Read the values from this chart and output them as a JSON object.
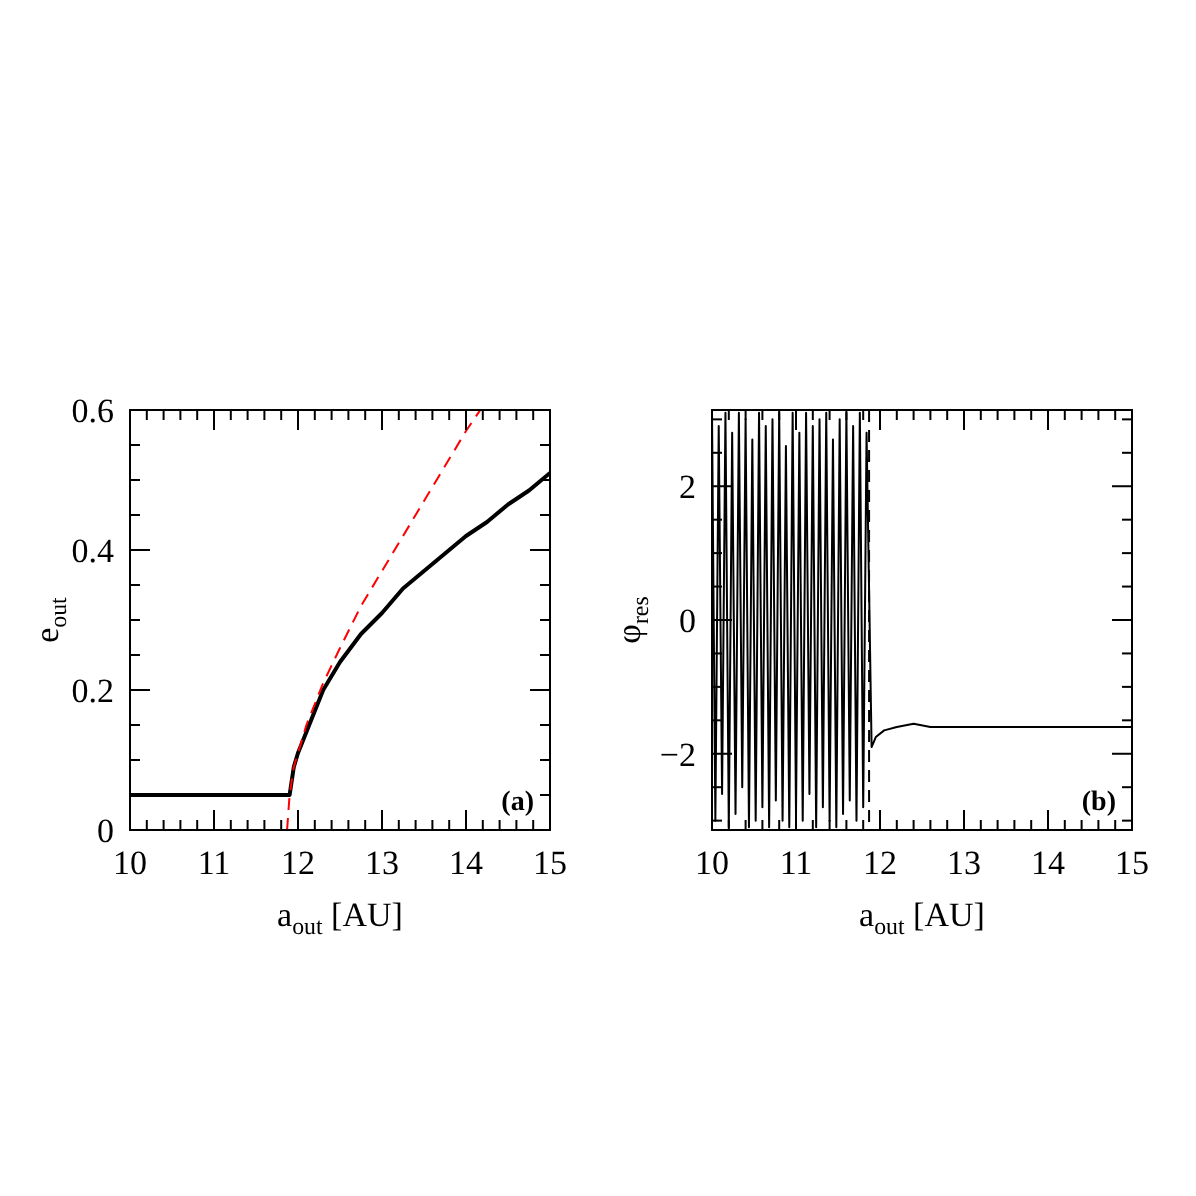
{
  "chart_data": [
    {
      "type": "line",
      "xlabel": "a$_{out}$[AU]",
      "ylabel": "e$_{out}$",
      "xlim": [
        10,
        15
      ],
      "ylim": [
        0,
        0.6
      ],
      "xticks": [
        10,
        {
          "value": 10.2,
          "label": null
        },
        {
          "value": 10.4,
          "label": null
        },
        {
          "value": 10.6,
          "label": null
        },
        {
          "value": 10.8,
          "label": null
        },
        11,
        {
          "value": 11.2,
          "label": null
        },
        {
          "value": 11.4,
          "label": null
        },
        {
          "value": 11.6,
          "label": null
        },
        {
          "value": 11.8,
          "label": null
        },
        12,
        {
          "value": 12.2,
          "label": null
        },
        {
          "value": 12.4,
          "label": null
        },
        {
          "value": 12.6,
          "label": null
        },
        {
          "value": 12.8,
          "label": null
        },
        13,
        {
          "value": 13.2,
          "label": null
        },
        {
          "value": 13.4,
          "label": null
        },
        {
          "value": 13.6,
          "label": null
        },
        {
          "value": 13.8,
          "label": null
        },
        14,
        {
          "value": 14.2,
          "label": null
        },
        {
          "value": 14.4,
          "label": null
        },
        {
          "value": 14.6,
          "label": null
        },
        {
          "value": 14.8,
          "label": null
        },
        15
      ],
      "yticks": [
        0,
        {
          "value": 0.05,
          "label": null
        },
        {
          "value": 0.1,
          "label": null
        },
        {
          "value": 0.15,
          "label": null
        },
        0.2,
        {
          "value": 0.25,
          "label": null
        },
        {
          "value": 0.3,
          "label": null
        },
        {
          "value": 0.35,
          "label": null
        },
        0.4,
        {
          "value": 0.45,
          "label": null
        },
        {
          "value": 0.5,
          "label": null
        },
        {
          "value": 0.55,
          "label": null
        },
        0.6
      ],
      "annotations": [
        "(a)"
      ],
      "series": [
        {
          "color": "#000000",
          "line_style": "solid",
          "x": [
            10,
            11,
            11.5,
            11.85,
            11.9,
            11.95,
            12,
            12.1,
            12.2,
            12.3,
            12.5,
            12.75,
            13,
            13.25,
            13.5,
            13.75,
            14,
            14.25,
            14.5,
            14.75,
            15
          ],
          "values": [
            0.05,
            0.05,
            0.05,
            0.05,
            0.05,
            0.09,
            0.11,
            0.14,
            0.17,
            0.2,
            0.24,
            0.28,
            0.31,
            0.345,
            0.37,
            0.395,
            0.42,
            0.44,
            0.465,
            0.485,
            0.51
          ]
        },
        {
          "color": "#ff0000",
          "line_style": "dashed",
          "x": [
            11.87,
            11.9,
            11.95,
            12,
            12.1,
            12.2,
            12.3,
            12.5,
            12.75,
            13,
            13.25,
            13.5,
            13.75,
            14,
            14.17
          ],
          "values": [
            0,
            0.05,
            0.09,
            0.11,
            0.15,
            0.18,
            0.21,
            0.26,
            0.32,
            0.37,
            0.42,
            0.47,
            0.52,
            0.57,
            0.6
          ]
        }
      ]
    },
    {
      "type": "line",
      "xlabel": "a$_{out}$ [AU]",
      "ylabel": "φ$_{res}$",
      "xlim": [
        10,
        15
      ],
      "ylim": [
        -3.14,
        3.14
      ],
      "xticks": [
        10,
        {
          "value": 10.2,
          "label": null
        },
        {
          "value": 10.4,
          "label": null
        },
        {
          "value": 10.6,
          "label": null
        },
        {
          "value": 10.8,
          "label": null
        },
        11,
        {
          "value": 11.2,
          "label": null
        },
        {
          "value": 11.4,
          "label": null
        },
        {
          "value": 11.6,
          "label": null
        },
        {
          "value": 11.8,
          "label": null
        },
        12,
        {
          "value": 12.2,
          "label": null
        },
        {
          "value": 12.4,
          "label": null
        },
        {
          "value": 12.6,
          "label": null
        },
        {
          "value": 12.8,
          "label": null
        },
        13,
        {
          "value": 13.2,
          "label": null
        },
        {
          "value": 13.4,
          "label": null
        },
        {
          "value": 13.6,
          "label": null
        },
        {
          "value": 13.8,
          "label": null
        },
        14,
        {
          "value": 14.2,
          "label": null
        },
        {
          "value": 14.4,
          "label": null
        },
        {
          "value": 14.6,
          "label": null
        },
        {
          "value": 14.8,
          "label": null
        },
        15
      ],
      "yticks": [
        {
          "value": -3,
          "label": null
        },
        {
          "value": -2.5,
          "label": null
        },
        -2,
        {
          "value": -1.5,
          "label": null
        },
        {
          "value": -1,
          "label": null
        },
        {
          "value": -0.5,
          "label": null
        },
        0,
        {
          "value": 0.5,
          "label": null
        },
        {
          "value": 1,
          "label": null
        },
        {
          "value": 1.5,
          "label": null
        },
        2,
        {
          "value": 2.5,
          "label": null
        },
        {
          "value": 3,
          "label": null
        }
      ],
      "annotations": [
        "(b)"
      ],
      "ref_lines": [
        {
          "axis": "x",
          "value": 11.87,
          "color": "#000000",
          "line_style": "dashed"
        }
      ],
      "series": [
        {
          "color": "#000000",
          "line_style": "solid",
          "x": [
            10,
            10.04,
            10.08,
            10.12,
            10.16,
            10.2,
            10.24,
            10.28,
            10.32,
            10.36,
            10.4,
            10.44,
            10.48,
            10.52,
            10.56,
            10.6,
            10.64,
            10.68,
            10.72,
            10.76,
            10.8,
            10.84,
            10.88,
            10.92,
            10.96,
            11,
            11.04,
            11.08,
            11.12,
            11.16,
            11.2,
            11.24,
            11.28,
            11.32,
            11.36,
            11.4,
            11.44,
            11.48,
            11.52,
            11.56,
            11.6,
            11.64,
            11.68,
            11.72,
            11.76,
            11.8,
            11.84,
            11.9,
            11.95,
            12.05,
            12.2,
            12.4,
            12.6,
            13,
            13.5,
            14,
            14.5,
            15
          ],
          "values": [
            3.1,
            -3,
            2.9,
            -2.6,
            3.1,
            -3.1,
            2.8,
            -2.9,
            3.1,
            -2.5,
            3,
            -3.1,
            2.7,
            -3,
            3.1,
            -2.8,
            2.9,
            -3.1,
            3,
            -2.7,
            3.1,
            -3,
            2.6,
            -3.1,
            3.1,
            -2.9,
            2.8,
            -3,
            3.1,
            -2.6,
            2.9,
            -3.1,
            3,
            -2.8,
            3.1,
            -3,
            2.7,
            -3.1,
            3,
            -2.9,
            3.1,
            -2.7,
            2.9,
            -3,
            3.1,
            -2.8,
            2.8,
            -1.9,
            -1.75,
            -1.65,
            -1.6,
            -1.55,
            -1.6,
            -1.6,
            -1.6,
            -1.6,
            -1.6,
            -1.6
          ]
        }
      ]
    }
  ]
}
